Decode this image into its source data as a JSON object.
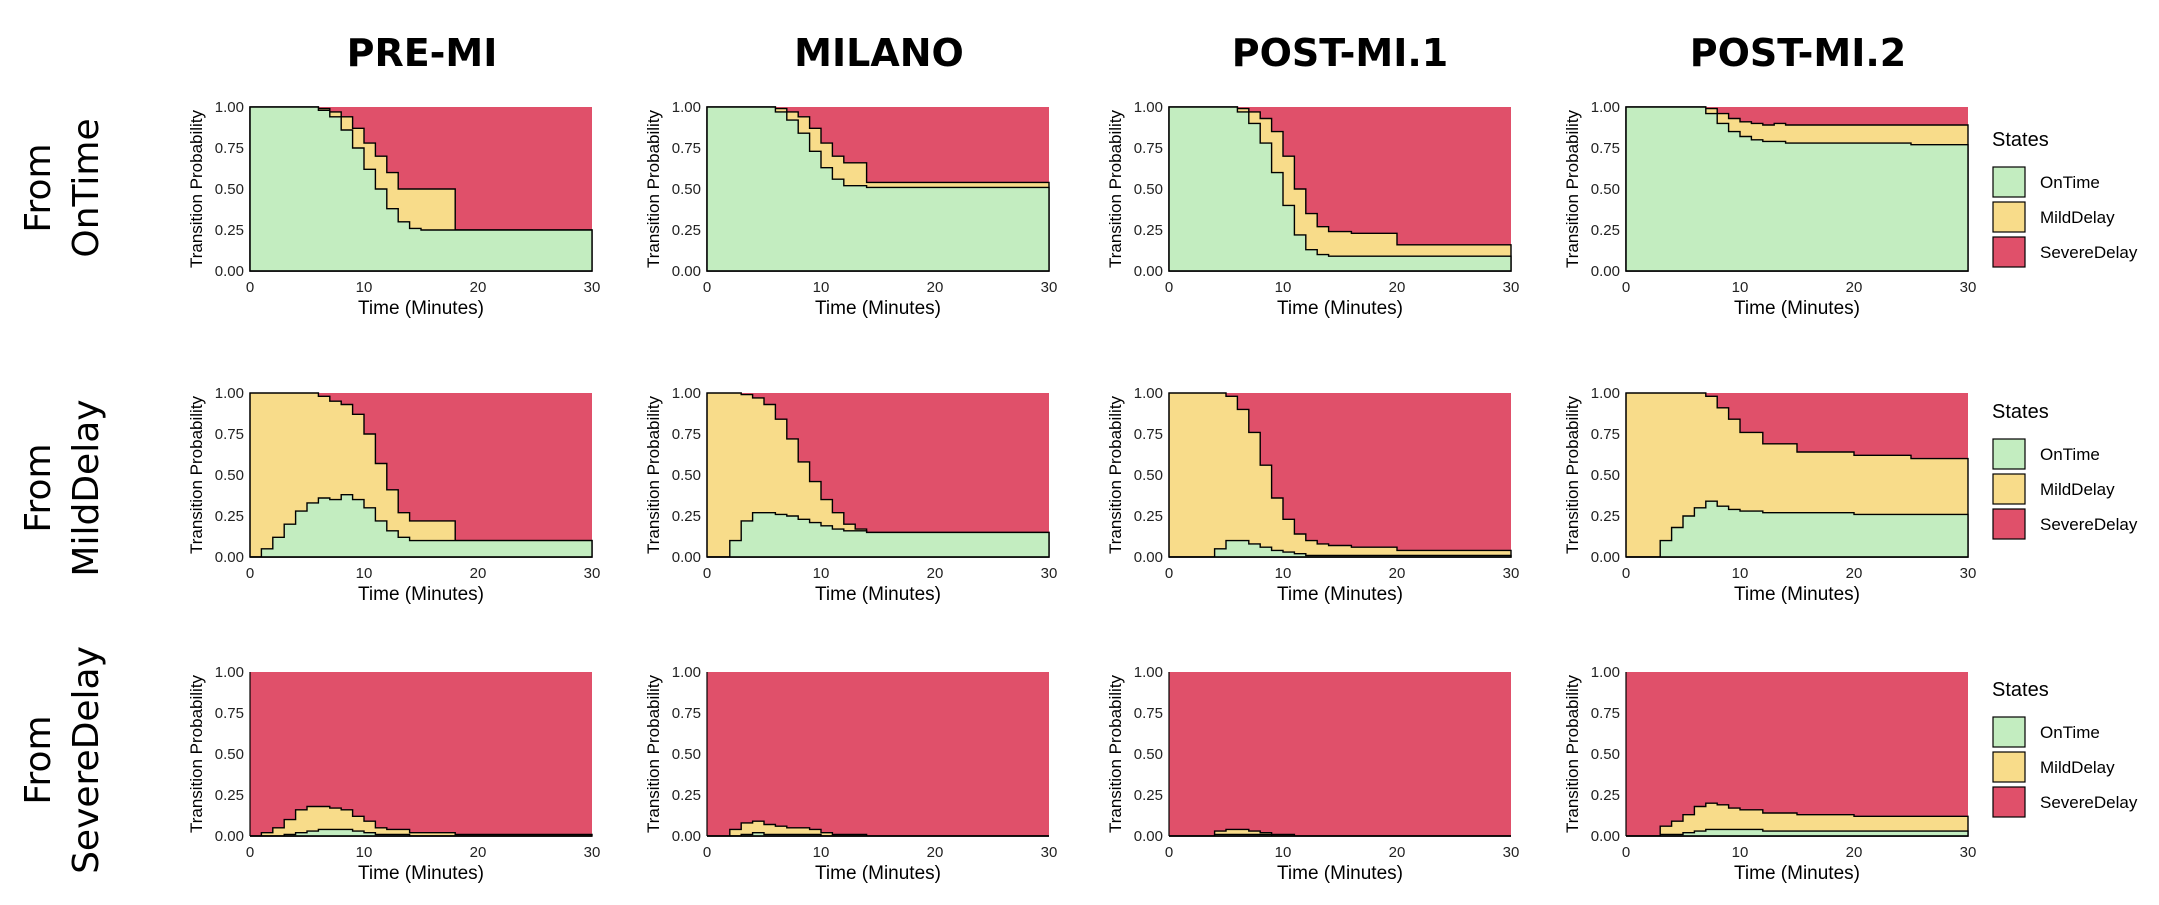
{
  "colors": {
    "OnTime": "#c3edc0",
    "MildDelay": "#f8dc8a",
    "SevereDelay": "#e0506a"
  },
  "column_titles": [
    "PRE-MI",
    "MILANO",
    "POST-MI.1",
    "POST-MI.2"
  ],
  "row_labels": [
    [
      "From",
      "OnTime"
    ],
    [
      "From",
      "MildDelay"
    ],
    [
      "From",
      "SevereDelay"
    ]
  ],
  "legend": {
    "title": "States",
    "items": [
      "OnTime",
      "MildDelay",
      "SevereDelay"
    ]
  },
  "chart_data": {
    "type": "area",
    "subtype": "stacked step area (state transition probabilities)",
    "xlabel": "Time (Minutes)",
    "ylabel": "Transition Probability",
    "xlim": [
      0,
      30
    ],
    "ylim": [
      0,
      1
    ],
    "xticks": [
      "0",
      "10",
      "20",
      "30"
    ],
    "yticks": [
      "0.00",
      "0.25",
      "0.50",
      "0.75",
      "1.00"
    ],
    "stack_order": [
      "OnTime",
      "MildDelay",
      "SevereDelay"
    ],
    "panels": [
      {
        "column": "PRE-MI",
        "row": "From OnTime",
        "x": [
          0,
          4,
          6,
          7,
          8,
          9,
          10,
          11,
          12,
          13,
          14,
          15,
          18,
          30
        ],
        "OnTime": [
          1,
          1,
          0.98,
          0.94,
          0.86,
          0.75,
          0.62,
          0.5,
          0.38,
          0.3,
          0.26,
          0.25,
          0.25,
          0.25
        ],
        "MildDelay": [
          0,
          0,
          0.01,
          0.03,
          0.08,
          0.12,
          0.16,
          0.2,
          0.22,
          0.2,
          0.24,
          0.25,
          0,
          0
        ]
      },
      {
        "column": "MILANO",
        "row": "From OnTime",
        "x": [
          0,
          4,
          6,
          7,
          8,
          9,
          10,
          11,
          12,
          14,
          30
        ],
        "OnTime": [
          1,
          1,
          0.97,
          0.92,
          0.84,
          0.73,
          0.63,
          0.56,
          0.52,
          0.51,
          0.51
        ],
        "MildDelay": [
          0,
          0,
          0.02,
          0.05,
          0.1,
          0.14,
          0.15,
          0.14,
          0.14,
          0.03,
          0.03
        ]
      },
      {
        "column": "POST-MI.1",
        "row": "From OnTime",
        "x": [
          0,
          4,
          6,
          7,
          8,
          9,
          10,
          11,
          12,
          13,
          14,
          16,
          20,
          30
        ],
        "OnTime": [
          1,
          1,
          0.97,
          0.9,
          0.78,
          0.6,
          0.4,
          0.22,
          0.13,
          0.1,
          0.09,
          0.09,
          0.09,
          0.09
        ],
        "MildDelay": [
          0,
          0,
          0.02,
          0.07,
          0.15,
          0.25,
          0.3,
          0.28,
          0.22,
          0.17,
          0.15,
          0.14,
          0.07,
          0.07
        ]
      },
      {
        "column": "POST-MI.2",
        "row": "From OnTime",
        "x": [
          0,
          6,
          7,
          8,
          9,
          10,
          11,
          12,
          13,
          14,
          15,
          20,
          25,
          30
        ],
        "OnTime": [
          1,
          1,
          0.96,
          0.9,
          0.85,
          0.82,
          0.8,
          0.79,
          0.79,
          0.78,
          0.78,
          0.78,
          0.77,
          0.77
        ],
        "MildDelay": [
          0,
          0,
          0.03,
          0.06,
          0.08,
          0.09,
          0.1,
          0.1,
          0.11,
          0.11,
          0.11,
          0.11,
          0.12,
          0.12
        ]
      },
      {
        "column": "PRE-MI",
        "row": "From MildDelay",
        "x": [
          0,
          1,
          2,
          3,
          4,
          5,
          6,
          7,
          8,
          9,
          10,
          11,
          12,
          13,
          14,
          15,
          18,
          30
        ],
        "OnTime": [
          0,
          0.05,
          0.12,
          0.2,
          0.28,
          0.33,
          0.36,
          0.35,
          0.38,
          0.35,
          0.3,
          0.22,
          0.16,
          0.12,
          0.1,
          0.1,
          0.1,
          0.1
        ],
        "MildDelay": [
          1,
          0.95,
          0.88,
          0.8,
          0.72,
          0.67,
          0.62,
          0.6,
          0.55,
          0.52,
          0.45,
          0.35,
          0.25,
          0.15,
          0.12,
          0.12,
          0,
          0
        ]
      },
      {
        "column": "MILANO",
        "row": "From MildDelay",
        "x": [
          0,
          1.5,
          2,
          3,
          4,
          5,
          6,
          7,
          8,
          9,
          10,
          11,
          12,
          13,
          14,
          30
        ],
        "OnTime": [
          0,
          0,
          0.1,
          0.22,
          0.27,
          0.27,
          0.26,
          0.25,
          0.23,
          0.21,
          0.19,
          0.17,
          0.16,
          0.16,
          0.15,
          0.15
        ],
        "MildDelay": [
          1,
          1,
          0.9,
          0.77,
          0.7,
          0.66,
          0.58,
          0.47,
          0.35,
          0.25,
          0.16,
          0.1,
          0.04,
          0.01,
          0,
          0
        ]
      },
      {
        "column": "POST-MI.1",
        "row": "From MildDelay",
        "x": [
          0,
          3,
          4,
          5,
          6,
          7,
          8,
          9,
          10,
          11,
          12,
          13,
          14,
          16,
          20,
          30
        ],
        "OnTime": [
          0,
          0,
          0.05,
          0.1,
          0.1,
          0.08,
          0.06,
          0.04,
          0.03,
          0.02,
          0.01,
          0.01,
          0.01,
          0.01,
          0.01,
          0.01
        ],
        "MildDelay": [
          1,
          1,
          0.95,
          0.88,
          0.8,
          0.68,
          0.5,
          0.32,
          0.2,
          0.12,
          0.09,
          0.07,
          0.06,
          0.05,
          0.03,
          0.03
        ]
      },
      {
        "column": "POST-MI.2",
        "row": "From MildDelay",
        "x": [
          0,
          2.5,
          3,
          4,
          5,
          6,
          7,
          8,
          9,
          10,
          12,
          15,
          20,
          25,
          30
        ],
        "OnTime": [
          0,
          0,
          0.1,
          0.18,
          0.25,
          0.3,
          0.34,
          0.31,
          0.29,
          0.28,
          0.27,
          0.27,
          0.26,
          0.26,
          0.26
        ],
        "MildDelay": [
          1,
          1,
          0.9,
          0.82,
          0.75,
          0.7,
          0.64,
          0.6,
          0.55,
          0.48,
          0.42,
          0.37,
          0.36,
          0.34,
          0.34
        ]
      },
      {
        "column": "PRE-MI",
        "row": "From SevereDelay",
        "x": [
          0,
          1,
          2,
          3,
          4,
          5,
          6,
          7,
          8,
          9,
          10,
          11,
          12,
          14,
          18,
          30
        ],
        "OnTime": [
          0,
          0,
          0,
          0.01,
          0.02,
          0.03,
          0.04,
          0.04,
          0.04,
          0.03,
          0.02,
          0.01,
          0.01,
          0,
          0,
          0
        ],
        "MildDelay": [
          0,
          0.02,
          0.05,
          0.09,
          0.14,
          0.15,
          0.14,
          0.13,
          0.12,
          0.09,
          0.07,
          0.04,
          0.03,
          0.02,
          0.01,
          0
        ]
      },
      {
        "column": "MILANO",
        "row": "From SevereDelay",
        "x": [
          0,
          1.5,
          2,
          3,
          4,
          5,
          6,
          7,
          8,
          9,
          10,
          11,
          12,
          14,
          30
        ],
        "OnTime": [
          0,
          0,
          0,
          0.01,
          0.02,
          0.01,
          0.01,
          0.01,
          0.01,
          0.01,
          0,
          0,
          0,
          0,
          0
        ],
        "MildDelay": [
          0,
          0,
          0.04,
          0.07,
          0.07,
          0.06,
          0.05,
          0.04,
          0.04,
          0.03,
          0.02,
          0.01,
          0.01,
          0,
          0
        ]
      },
      {
        "column": "POST-MI.1",
        "row": "From SevereDelay",
        "x": [
          0,
          3,
          4,
          5,
          6,
          7,
          8,
          9,
          10,
          11,
          12,
          30
        ],
        "OnTime": [
          0,
          0,
          0.01,
          0.01,
          0.01,
          0.01,
          0.01,
          0,
          0,
          0,
          0,
          0
        ],
        "MildDelay": [
          0,
          0,
          0.02,
          0.03,
          0.03,
          0.02,
          0.01,
          0.01,
          0.01,
          0,
          0,
          0
        ]
      },
      {
        "column": "POST-MI.2",
        "row": "From SevereDelay",
        "x": [
          0,
          2.5,
          3,
          4,
          5,
          6,
          7,
          8,
          9,
          10,
          12,
          15,
          20,
          25,
          30
        ],
        "OnTime": [
          0,
          0,
          0.01,
          0.01,
          0.02,
          0.03,
          0.04,
          0.04,
          0.04,
          0.04,
          0.03,
          0.03,
          0.03,
          0.03,
          0.03
        ],
        "MildDelay": [
          0,
          0,
          0.05,
          0.08,
          0.11,
          0.15,
          0.16,
          0.15,
          0.13,
          0.12,
          0.11,
          0.1,
          0.09,
          0.09,
          0.08
        ]
      }
    ]
  }
}
